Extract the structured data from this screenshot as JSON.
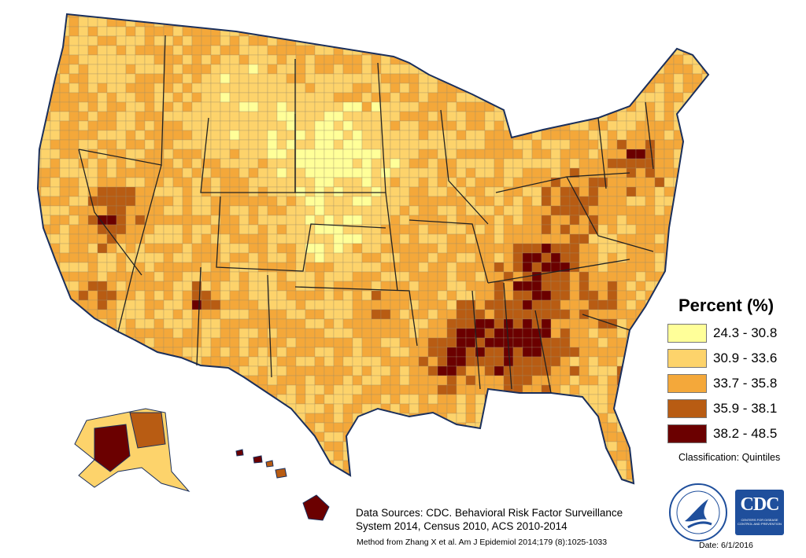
{
  "legend": {
    "title": "Percent (%)",
    "classes": [
      {
        "range": "24.3 - 30.8",
        "color": "#ffff99"
      },
      {
        "range": "30.9 - 33.6",
        "color": "#fdd36b"
      },
      {
        "range": "33.7 - 35.8",
        "color": "#f4a83a"
      },
      {
        "range": "35.9 - 38.1",
        "color": "#b85c13"
      },
      {
        "range": "38.2 - 48.5",
        "color": "#6b0000"
      }
    ],
    "classification": "Classification: Quintiles"
  },
  "sources": {
    "line1": "Data Sources: CDC. Behavioral Risk Factor Surveillance",
    "line2": "System 2014, Census 2010, ACS 2010-2014",
    "method": "Method from Zhang X et al.  Am J Epidemiol 2014;179 (8):1025-1033"
  },
  "date": "Date: 6/1/2016",
  "logos": {
    "hhs": "hhs-seal-icon",
    "cdc_text": "CDC",
    "cdc_sub": "CENTERS FOR DISEASE CONTROL AND PREVENTION"
  },
  "map": {
    "border_color": "#1a2f5c",
    "state_line_color": "#222222"
  }
}
